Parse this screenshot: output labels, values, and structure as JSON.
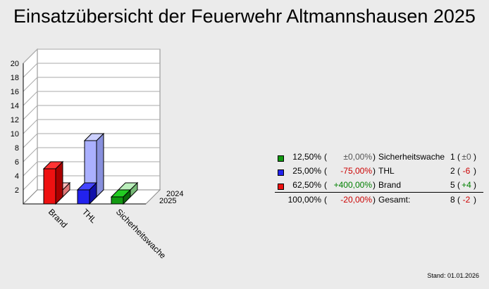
{
  "title": "Einsatzübersicht der Feuerwehr Altmannshausen 2025",
  "stand": "Stand: 01.01.2026",
  "colors": {
    "Sicherheitswache": {
      "front": "#119911",
      "top": "#22cc22",
      "side": "#0b6b0b",
      "light": "#99dd99",
      "lightTop": "#bbeebb",
      "lightSide": "#77bb77"
    },
    "THL": {
      "front": "#2222ee",
      "top": "#4444ff",
      "side": "#1111aa",
      "light": "#aab0ff",
      "lightTop": "#ccd0ff",
      "lightSide": "#8890dd"
    },
    "Brand": {
      "front": "#ee1111",
      "top": "#ff3333",
      "side": "#aa0000",
      "light": "#ff9a9a",
      "lightTop": "#ffbbbb",
      "lightSide": "#dd7777"
    }
  },
  "legend": {
    "rows": [
      {
        "category": "Sicherheitswache",
        "percent": "12,50%",
        "change": "±0,00%",
        "change_sign": "neutral",
        "count": "1",
        "delta": "±0",
        "delta_sign": "neutral"
      },
      {
        "category": "THL",
        "percent": "25,00%",
        "change": "-75,00%",
        "change_sign": "negative",
        "count": "2",
        "delta": "-6",
        "delta_sign": "negative"
      },
      {
        "category": "Brand",
        "percent": "62,50%",
        "change": "+400,00%",
        "change_sign": "positive",
        "count": "5",
        "delta": "+4",
        "delta_sign": "positive"
      }
    ],
    "total": {
      "category": "Gesamt:",
      "percent": "100,00%",
      "change": "-20,00%",
      "change_sign": "negative",
      "count": "8",
      "delta": "-2",
      "delta_sign": "negative"
    }
  },
  "chart_data": {
    "type": "bar",
    "title": "Einsatzübersicht der Feuerwehr Altmannshausen 2025",
    "categories": [
      "Brand",
      "THL",
      "Sicherheitswache"
    ],
    "series": [
      {
        "name": "2025",
        "values": [
          5,
          2,
          1
        ]
      },
      {
        "name": "2024",
        "values": [
          1,
          8,
          1
        ]
      }
    ],
    "yticks": [
      2,
      4,
      6,
      8,
      10,
      12,
      14,
      16,
      18,
      20
    ],
    "ylim": [
      0,
      20
    ],
    "grid": true,
    "style": "3d"
  }
}
